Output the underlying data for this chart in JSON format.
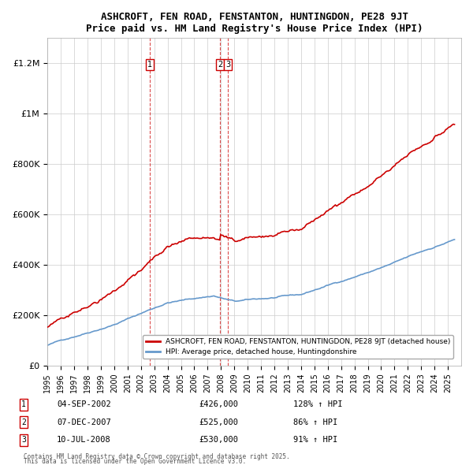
{
  "title": "ASHCROFT, FEN ROAD, FENSTANTON, HUNTINGDON, PE28 9JT",
  "subtitle": "Price paid vs. HM Land Registry's House Price Index (HPI)",
  "legend_line1": "ASHCROFT, FEN ROAD, FENSTANTON, HUNTINGDON, PE28 9JT (detached house)",
  "legend_line2": "HPI: Average price, detached house, Huntingdonshire",
  "sale_color": "#cc0000",
  "hpi_color": "#6699cc",
  "transactions": [
    {
      "label": "1",
      "date_num": 2002.67,
      "price": 426000,
      "note": "04-SEP-2002",
      "pct": "128% ↑ HPI"
    },
    {
      "label": "2",
      "date_num": 2007.92,
      "price": 525000,
      "note": "07-DEC-2007",
      "pct": "86% ↑ HPI"
    },
    {
      "label": "3",
      "date_num": 2008.52,
      "price": 530000,
      "note": "10-JUL-2008",
      "pct": "91% ↑ HPI"
    }
  ],
  "footer1": "Contains HM Land Registry data © Crown copyright and database right 2025.",
  "footer2": "This data is licensed under the Open Government Licence v3.0.",
  "ylim": [
    0,
    1300000
  ],
  "yticks": [
    0,
    200000,
    400000,
    600000,
    800000,
    1000000,
    1200000
  ],
  "ytick_labels": [
    "£0",
    "£200K",
    "£400K",
    "£600K",
    "£800K",
    "£1M",
    "£1.2M"
  ],
  "xmin": 1995.0,
  "xmax": 2026.0
}
